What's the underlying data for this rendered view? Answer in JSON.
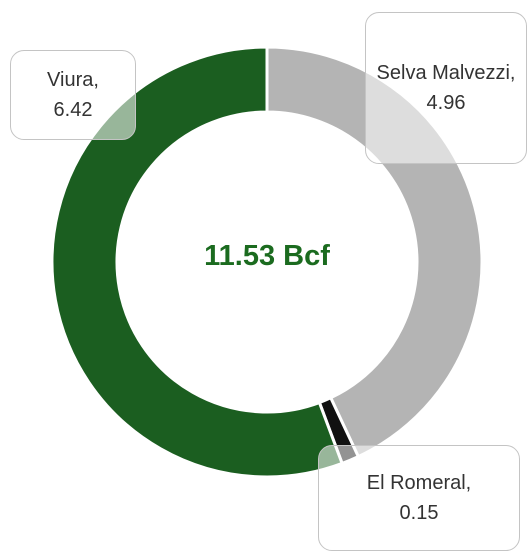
{
  "chart_data": {
    "type": "pie",
    "center_label": "11.53 Bcf",
    "categories": [
      "Selva Malvezzi",
      "El Romeral",
      "Viura"
    ],
    "data_labels": [
      "Selva Malvezzi,",
      "El Romeral,",
      "Viura,"
    ],
    "values": [
      4.96,
      0.15,
      6.42
    ],
    "colors": [
      "#b4b4b4",
      "#111111",
      "#1b5e20"
    ]
  }
}
